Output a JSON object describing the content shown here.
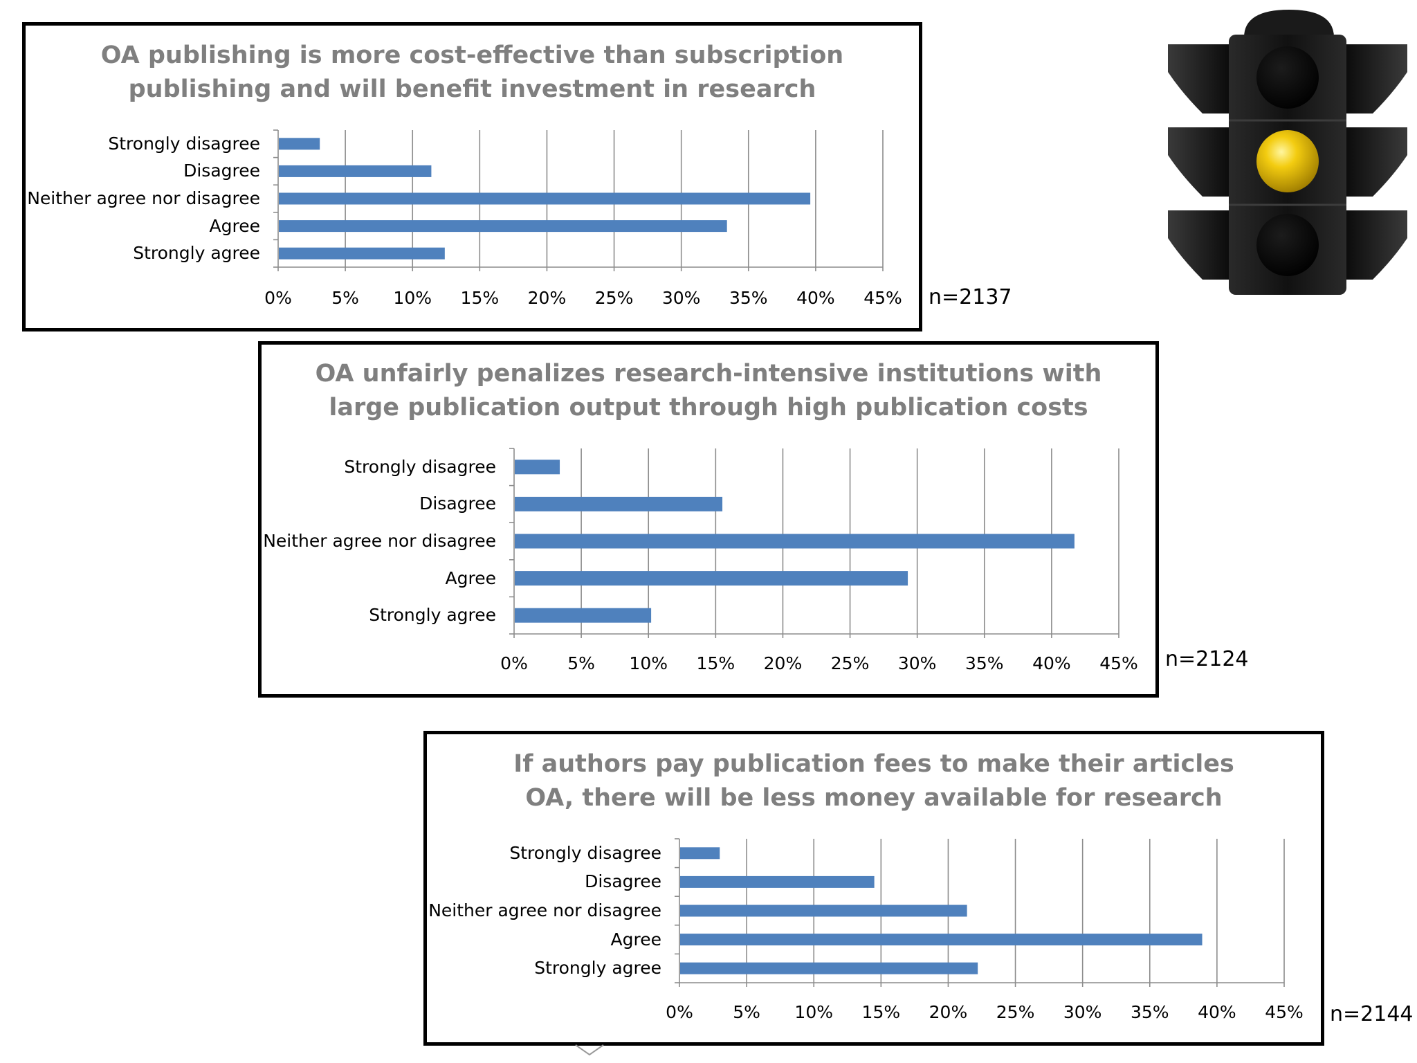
{
  "chart_data": [
    {
      "type": "bar",
      "orientation": "horizontal",
      "title_lines": [
        "OA publishing is more cost-effective than subscription",
        "publishing and will benefit investment in research"
      ],
      "categories": [
        "Strongly disagree",
        "Disagree",
        "Neither agree nor disagree",
        "Agree",
        "Strongly agree"
      ],
      "values": [
        3.1,
        11.4,
        39.6,
        33.4,
        12.4
      ],
      "value_unit": "%",
      "xlim": [
        0,
        45
      ],
      "x_ticks": [
        "0%",
        "5%",
        "10%",
        "15%",
        "20%",
        "25%",
        "30%",
        "35%",
        "40%",
        "45%"
      ],
      "grid": "vertical",
      "legend": "none",
      "bar_color": "#4f81bd",
      "n_label": "n=2137"
    },
    {
      "type": "bar",
      "orientation": "horizontal",
      "title_lines": [
        "OA unfairly penalizes research-intensive institutions with",
        "large publication output through high publication costs"
      ],
      "categories": [
        "Strongly disagree",
        "Disagree",
        "Neither agree nor disagree",
        "Agree",
        "Strongly agree"
      ],
      "values": [
        3.4,
        15.5,
        41.7,
        29.3,
        10.2
      ],
      "value_unit": "%",
      "xlim": [
        0,
        45
      ],
      "x_ticks": [
        "0%",
        "5%",
        "10%",
        "15%",
        "20%",
        "25%",
        "30%",
        "35%",
        "40%",
        "45%"
      ],
      "grid": "vertical",
      "legend": "none",
      "bar_color": "#4f81bd",
      "n_label": "n=2124"
    },
    {
      "type": "bar",
      "orientation": "horizontal",
      "title_lines": [
        "If authors pay publication fees to make their articles",
        "OA, there will be less money available for research"
      ],
      "categories": [
        "Strongly disagree",
        "Disagree",
        "Neither agree nor disagree",
        "Agree",
        "Strongly agree"
      ],
      "values": [
        3.0,
        14.5,
        21.4,
        38.9,
        22.2
      ],
      "value_unit": "%",
      "xlim": [
        0,
        45
      ],
      "x_ticks": [
        "0%",
        "5%",
        "10%",
        "15%",
        "20%",
        "25%",
        "30%",
        "35%",
        "40%",
        "45%"
      ],
      "grid": "vertical",
      "legend": "none",
      "bar_color": "#4f81bd",
      "n_label": "n=2144"
    }
  ],
  "traffic_light": {
    "active_lamp": "amber",
    "amber_color": "#e8b800",
    "body_color": "#111111",
    "lamp_off_color": "#050505"
  }
}
